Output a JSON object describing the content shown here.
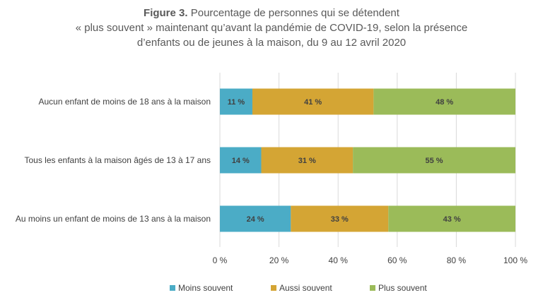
{
  "title": {
    "label": "Figure 3.",
    "line1": "Pourcentage de personnes qui se détendent",
    "line2": "« plus souvent » maintenant qu’avant la pandémie de COVID-19, selon la présence",
    "line3": "d’enfants ou de jeunes à la maison, du 9 au 12 avril 2020"
  },
  "chart_data": {
    "type": "bar",
    "orientation": "horizontal",
    "stacked": true,
    "categories": [
      "Aucun enfant de moins de 18 ans à la maison",
      "Tous les enfants à la maison âgés de 13 à 17 ans",
      "Au moins un enfant de moins de 13 ans à la maison"
    ],
    "series": [
      {
        "name": "Moins souvent",
        "values": [
          11,
          14,
          24
        ],
        "labels": [
          "11 %",
          "14 %",
          "24 %"
        ],
        "color": "#4bacc6"
      },
      {
        "name": "Aussi souvent",
        "values": [
          41,
          31,
          33
        ],
        "labels": [
          "41 %",
          "31 %",
          "33 %"
        ],
        "color": "#d4a534"
      },
      {
        "name": "Plus souvent",
        "values": [
          48,
          55,
          43
        ],
        "labels": [
          "48 %",
          "55 %",
          "43 %"
        ],
        "color": "#9bbb59"
      }
    ],
    "xlim": [
      0,
      100
    ],
    "xticks": [
      0,
      20,
      40,
      60,
      80,
      100
    ],
    "xtick_labels": [
      "0 %",
      "20 %",
      "40 %",
      "60 %",
      "80 %",
      "100 %"
    ],
    "grid": "vertical",
    "gridline_color": "#d9d9d9",
    "legend_position": "bottom"
  }
}
